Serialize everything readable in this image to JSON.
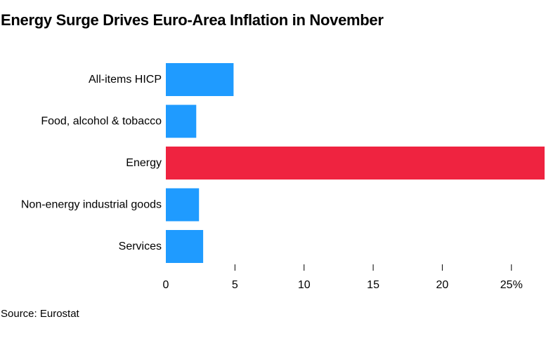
{
  "title": "Energy Surge Drives Euro-Area Inflation in November",
  "source": "Source: Eurostat",
  "chart_data": {
    "type": "bar",
    "orientation": "horizontal",
    "title": "Energy Surge Drives Euro-Area Inflation in November",
    "categories": [
      "All-items HICP",
      "Food, alcohol & tobacco",
      "Energy",
      "Non-energy industrial goods",
      "Services"
    ],
    "values": [
      4.9,
      2.2,
      27.4,
      2.4,
      2.7
    ],
    "colors": [
      "#1f9bff",
      "#1f9bff",
      "#ef2340",
      "#1f9bff",
      "#1f9bff"
    ],
    "xlim": [
      0,
      27.4
    ],
    "xticks": [
      0,
      5,
      10,
      15,
      20,
      25
    ],
    "xtick_labels": [
      "0",
      "5",
      "10",
      "15",
      "20",
      "25%"
    ],
    "xlabel": "",
    "ylabel": "",
    "grid": false,
    "legend": "none"
  }
}
